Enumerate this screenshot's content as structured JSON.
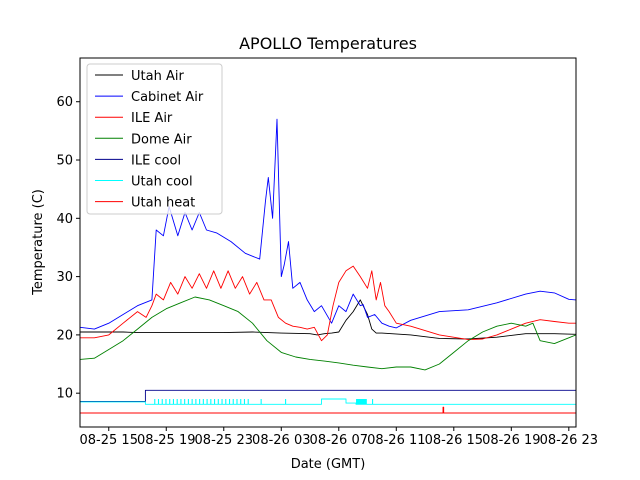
{
  "chart_data": {
    "type": "line",
    "title": "APOLLO Temperatures",
    "xlabel": "Date (GMT)",
    "ylabel": "Temperature (C)",
    "xlim": [
      13,
      47.5
    ],
    "ylim": [
      4.2,
      67.5
    ],
    "x_unit": "hours since 2024-08-25 00:00 GMT",
    "grid": false,
    "legend_position": "top-left",
    "x_ticks": [
      {
        "value": 15,
        "label": "08-25 15"
      },
      {
        "value": 19,
        "label": "08-25 19"
      },
      {
        "value": 23,
        "label": "08-25 23"
      },
      {
        "value": 27,
        "label": "08-26 03"
      },
      {
        "value": 31,
        "label": "08-26 07"
      },
      {
        "value": 35,
        "label": "08-26 11"
      },
      {
        "value": 39,
        "label": "08-26 15"
      },
      {
        "value": 43,
        "label": "08-26 19"
      },
      {
        "value": 47,
        "label": "08-26 23"
      }
    ],
    "y_ticks": [
      {
        "value": 10,
        "label": "10"
      },
      {
        "value": 20,
        "label": "20"
      },
      {
        "value": 30,
        "label": "30"
      },
      {
        "value": 40,
        "label": "40"
      },
      {
        "value": 50,
        "label": "50"
      },
      {
        "value": 60,
        "label": "60"
      }
    ],
    "series": [
      {
        "name": "Utah Air",
        "color": "#000000",
        "x": [
          13,
          16,
          17,
          19,
          21,
          23,
          25,
          27,
          29,
          29.5,
          30,
          30.5,
          31,
          31.5,
          32,
          32.5,
          33,
          33.3,
          33.6,
          34,
          36,
          38,
          40,
          42,
          44,
          46,
          47.5
        ],
        "y": [
          20.5,
          20.5,
          20.4,
          20.4,
          20.4,
          20.4,
          20.5,
          20.3,
          20.2,
          20.0,
          20.2,
          20.3,
          20.5,
          22.5,
          24.0,
          26.0,
          23.5,
          21.0,
          20.3,
          20.3,
          20.0,
          19.4,
          19.3,
          19.6,
          20.2,
          20.2,
          20.1
        ]
      },
      {
        "name": "Cabinet Air",
        "color": "#0000ff",
        "x": [
          13,
          14,
          15,
          16,
          17,
          17.5,
          18,
          18.3,
          18.8,
          19.2,
          19.8,
          20.3,
          20.8,
          21.3,
          21.8,
          22.5,
          23.5,
          24.5,
          25.5,
          25.9,
          26.1,
          26.4,
          26.7,
          27,
          27.2,
          27.5,
          27.8,
          28.3,
          28.8,
          29.3,
          29.8,
          30.5,
          31,
          31.5,
          32,
          32.5,
          32.7,
          33,
          33.5,
          34,
          34.5,
          35,
          36,
          38,
          40,
          42,
          44,
          45,
          46,
          47,
          47.5
        ],
        "y": [
          21.3,
          21,
          22,
          23.5,
          25,
          25.5,
          26,
          38,
          37,
          42,
          37,
          41,
          38,
          41,
          38,
          37.5,
          36,
          34,
          33,
          43,
          47,
          40,
          57,
          30,
          32,
          36,
          28,
          29,
          26,
          24,
          25,
          22,
          25,
          24,
          27,
          25,
          25.2,
          23,
          23.5,
          22,
          21.5,
          21.2,
          22.5,
          24,
          24.3,
          25.5,
          27,
          27.5,
          27.2,
          26.1,
          26
        ]
      },
      {
        "name": "ILE Air",
        "color": "#ff0000",
        "x": [
          13,
          14,
          15,
          16,
          17,
          17.6,
          18,
          18.3,
          18.8,
          19.3,
          19.8,
          20.3,
          20.8,
          21.3,
          21.8,
          22.3,
          22.8,
          23.3,
          23.8,
          24.3,
          24.8,
          25.3,
          25.8,
          26.3,
          26.8,
          27.3,
          27.8,
          28.3,
          28.8,
          29.3,
          29.8,
          30.2,
          30.6,
          31,
          31.5,
          32,
          32.5,
          33,
          33.3,
          33.6,
          33.9,
          34.2,
          34.5,
          35,
          36,
          38,
          40,
          41,
          42,
          43,
          44,
          45,
          46,
          47,
          47.5
        ],
        "y": [
          19.5,
          19.5,
          20,
          22,
          24,
          23,
          25,
          27,
          26,
          29,
          27,
          30,
          28,
          30.5,
          28,
          31,
          28,
          31,
          28,
          30,
          27,
          29,
          26,
          26,
          23,
          22,
          21.5,
          21.3,
          21,
          21.3,
          19,
          20,
          25,
          29,
          31,
          31.8,
          30,
          28,
          31,
          26,
          29,
          25,
          24,
          22,
          21.5,
          20,
          19.2,
          19.3,
          20,
          21,
          22,
          22.6,
          22.3,
          22,
          22
        ]
      },
      {
        "name": "Dome Air",
        "color": "#008000",
        "x": [
          13,
          14,
          15,
          16,
          17,
          18,
          19,
          20,
          21,
          22,
          23,
          24,
          25,
          26,
          27,
          28,
          29,
          30,
          31,
          32,
          33,
          34,
          35,
          36,
          37,
          38,
          39,
          40,
          41,
          42,
          43,
          44,
          44.5,
          45,
          46,
          47,
          47.5
        ],
        "y": [
          15.8,
          16,
          17.5,
          19,
          21,
          23,
          24.5,
          25.5,
          26.5,
          26,
          25,
          24,
          22,
          19,
          17,
          16.2,
          15.8,
          15.5,
          15.2,
          14.8,
          14.5,
          14.2,
          14.5,
          14.5,
          14,
          15,
          17,
          19,
          20.5,
          21.5,
          22,
          21.5,
          22,
          19,
          18.5,
          19.5,
          20
        ]
      },
      {
        "name": "ILE cool",
        "color": "#00008b",
        "x": [
          13,
          17.55,
          17.55,
          47.5
        ],
        "y": [
          8.6,
          8.6,
          10.5,
          10.5
        ]
      },
      {
        "name": "Utah cool",
        "color": "#00ffff",
        "x": [
          13,
          17.55,
          17.55,
          29.8,
          29.8,
          31.5,
          31.5,
          32.2,
          32.2,
          47.5
        ],
        "y": [
          8.5,
          8.5,
          8.1,
          8.1,
          9.0,
          9.0,
          8.3,
          8.3,
          8.1,
          8.1
        ]
      },
      {
        "name": "Utah heat",
        "color": "#ff0000",
        "x": [
          13,
          38.25,
          38.25,
          38.3,
          38.3,
          47.5
        ],
        "y": [
          6.6,
          6.6,
          7.6,
          7.6,
          6.6,
          6.6
        ]
      }
    ]
  }
}
